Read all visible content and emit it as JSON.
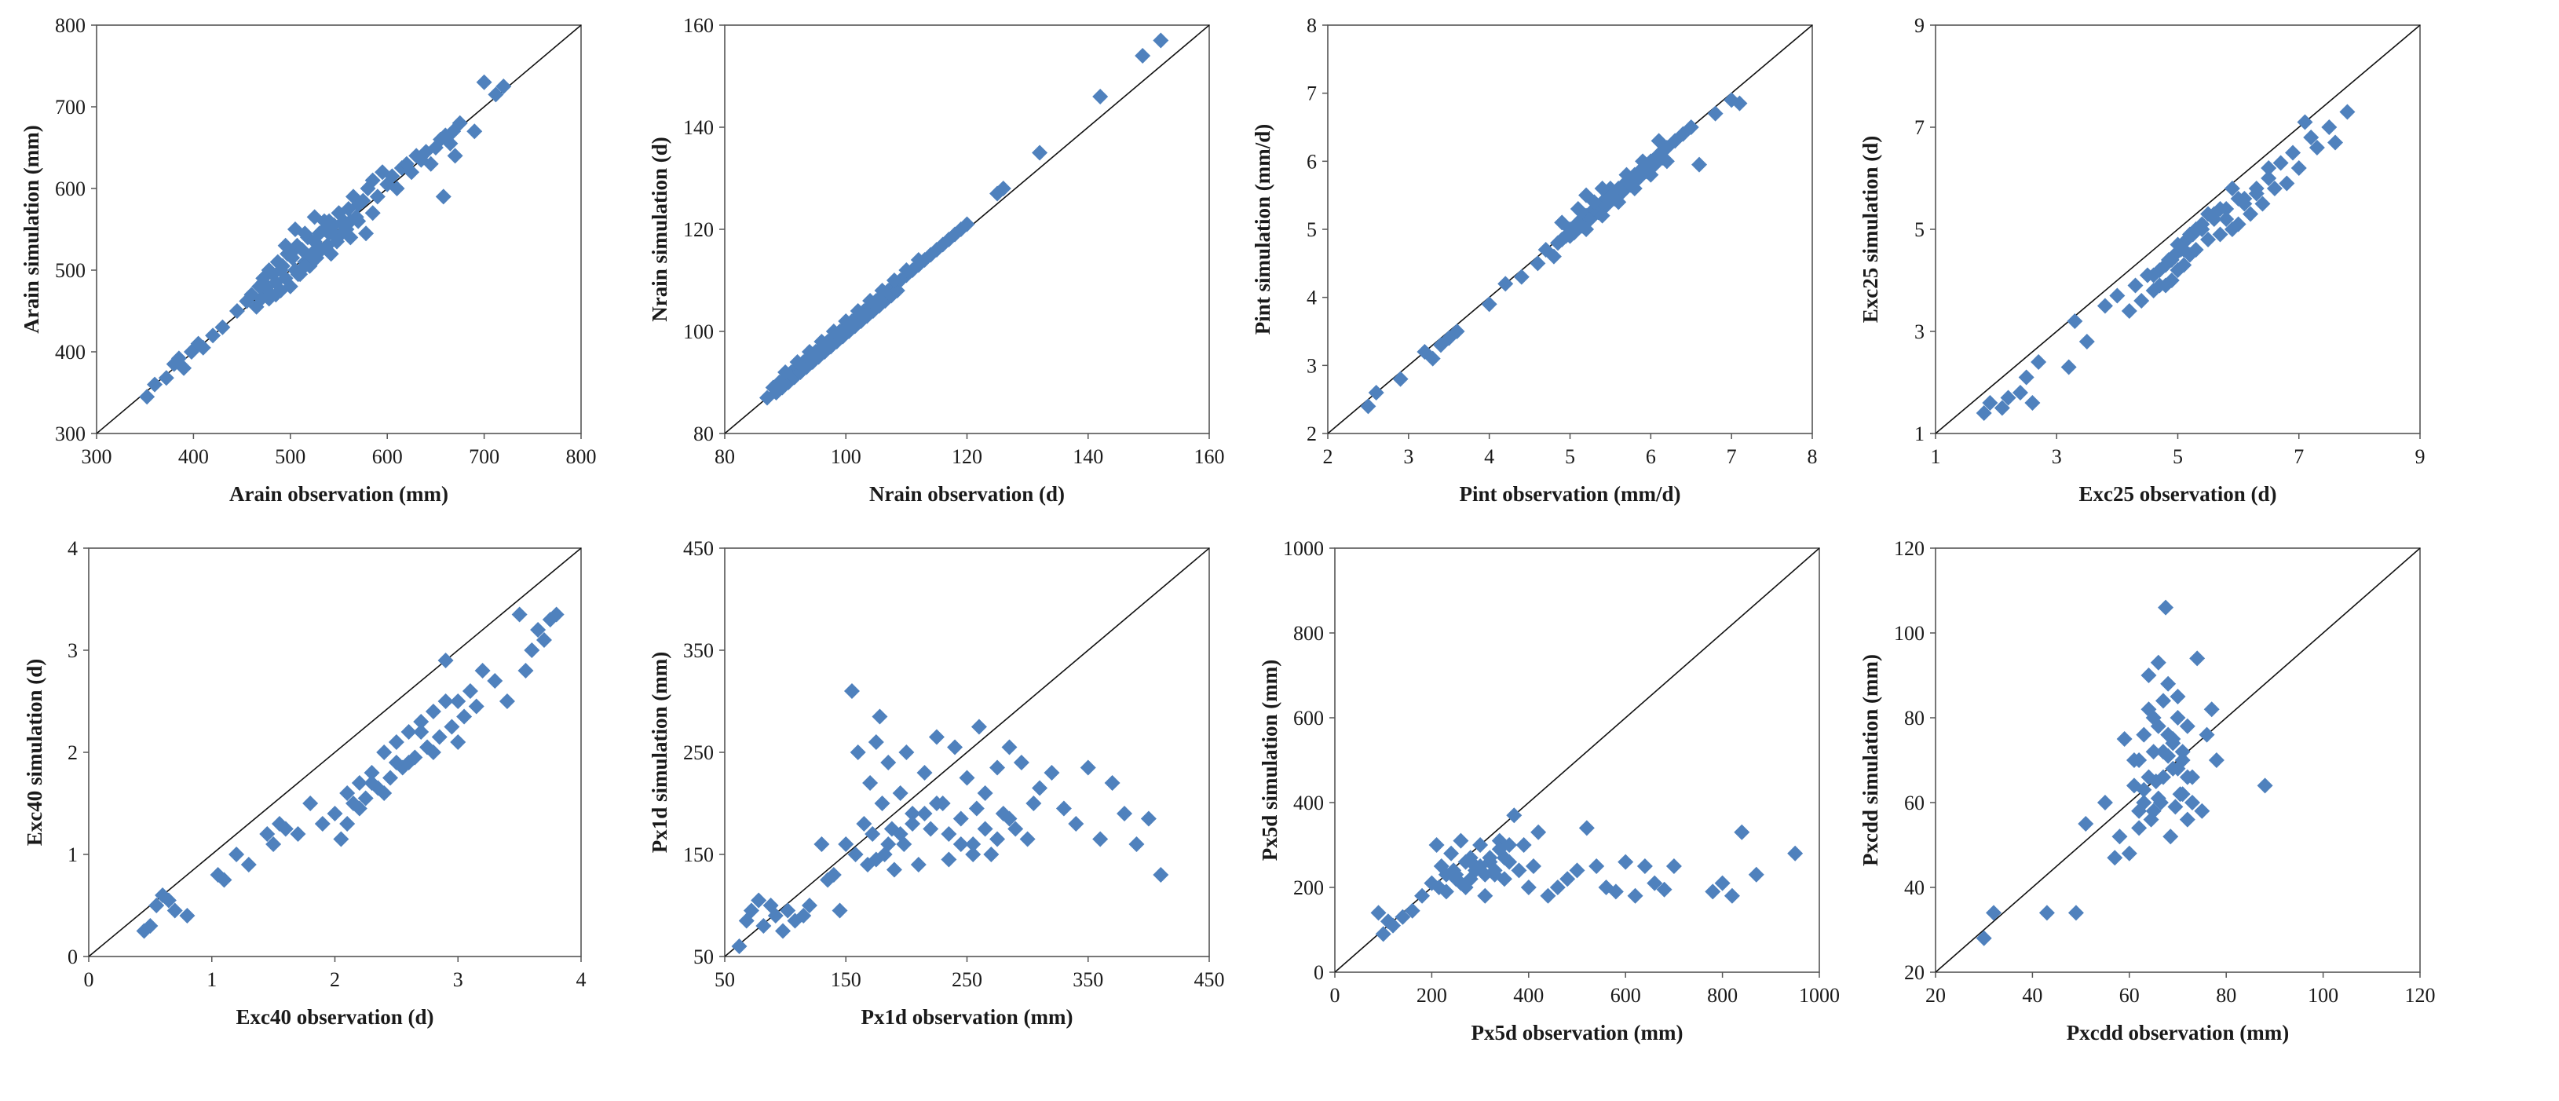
{
  "marker_color": "#4F81BD",
  "marker_shape": "diamond",
  "chart_data": [
    {
      "type": "scatter",
      "title": "",
      "xlabel": "Arain observation  (mm)",
      "ylabel": "Arain simulation (mm)",
      "xlim": [
        300,
        800
      ],
      "ylim": [
        300,
        800
      ],
      "xticks": [
        "300",
        "400",
        "500",
        "600",
        "700",
        "800"
      ],
      "yticks": [
        "300",
        "400",
        "500",
        "600",
        "700",
        "800"
      ],
      "reference_line": "1:1",
      "x": [
        352,
        360,
        372,
        380,
        385,
        390,
        398,
        405,
        410,
        420,
        430,
        445,
        455,
        460,
        465,
        468,
        470,
        472,
        475,
        478,
        480,
        482,
        485,
        487,
        490,
        492,
        495,
        497,
        500,
        502,
        505,
        507,
        510,
        512,
        515,
        518,
        520,
        522,
        525,
        527,
        530,
        532,
        535,
        538,
        540,
        542,
        545,
        548,
        550,
        553,
        555,
        558,
        560,
        562,
        565,
        568,
        570,
        575,
        580,
        585,
        590,
        595,
        600,
        605,
        610,
        615,
        620,
        625,
        630,
        635,
        640,
        645,
        650,
        655,
        658,
        660,
        665,
        668,
        670,
        675,
        690,
        700,
        712,
        720,
        472,
        478,
        485,
        490,
        500,
        508,
        515,
        525,
        532,
        540,
        548,
        555,
        562,
        570,
        578,
        585,
        495,
        505,
        515,
        525,
        535
      ],
      "y": [
        345,
        360,
        368,
        385,
        392,
        380,
        400,
        410,
        405,
        420,
        430,
        450,
        462,
        470,
        455,
        480,
        465,
        490,
        478,
        500,
        470,
        495,
        485,
        510,
        475,
        505,
        490,
        520,
        480,
        515,
        500,
        530,
        495,
        525,
        510,
        540,
        505,
        520,
        535,
        515,
        545,
        525,
        550,
        530,
        560,
        520,
        555,
        540,
        570,
        545,
        560,
        550,
        575,
        560,
        590,
        565,
        580,
        585,
        600,
        610,
        590,
        620,
        605,
        615,
        600,
        625,
        630,
        620,
        640,
        635,
        645,
        630,
        650,
        660,
        590,
        665,
        655,
        670,
        640,
        680,
        670,
        730,
        715,
        725,
        485,
        465,
        470,
        500,
        520,
        495,
        505,
        515,
        525,
        545,
        535,
        555,
        540,
        560,
        545,
        570,
        530,
        550,
        545,
        565,
        560
      ]
    },
    {
      "type": "scatter",
      "title": "",
      "xlabel": "Nrain observation  (d)",
      "ylabel": "Nrain simulation (d)",
      "xlim": [
        80,
        160
      ],
      "ylim": [
        80,
        160
      ],
      "xticks": [
        "80",
        "100",
        "120",
        "140",
        "160"
      ],
      "yticks": [
        "80",
        "100",
        "120",
        "140",
        "160"
      ],
      "reference_line": "1:1",
      "x": [
        87,
        88,
        88.5,
        89,
        89.5,
        90,
        90.5,
        91,
        91.5,
        92,
        92.5,
        93,
        93.5,
        94,
        94.5,
        95,
        95.5,
        96,
        96.5,
        97,
        97.5,
        98,
        98.5,
        99,
        99.5,
        100,
        100.5,
        101,
        101.5,
        102,
        102.5,
        103,
        103.5,
        104,
        104.5,
        105,
        105.5,
        106,
        106.5,
        107,
        107.5,
        108,
        108.5,
        109,
        110,
        111,
        112,
        113,
        114,
        115,
        116,
        117,
        118,
        119,
        120,
        125,
        126,
        132,
        142,
        149,
        152,
        90,
        92,
        94,
        96,
        98,
        100,
        102,
        104,
        106,
        108,
        110,
        112,
        95,
        97,
        99,
        101,
        103,
        105
      ],
      "y": [
        87,
        89,
        88,
        90,
        89,
        91,
        90,
        92,
        91,
        93,
        92,
        94,
        93,
        95,
        94,
        96,
        95,
        97,
        96,
        98,
        97,
        99,
        98,
        100,
        99,
        101,
        100,
        102,
        101,
        103,
        102,
        104,
        103,
        105,
        104,
        106,
        105,
        107,
        106,
        108,
        107,
        109,
        108,
        110,
        111,
        112,
        113,
        114,
        115,
        116,
        117,
        118,
        119,
        120,
        121,
        127,
        128,
        135,
        146,
        154,
        157,
        92,
        94,
        96,
        98,
        100,
        102,
        104,
        106,
        108,
        110,
        112,
        114,
        95,
        97,
        99,
        101,
        103,
        105
      ]
    },
    {
      "type": "scatter",
      "title": "",
      "xlabel": "Pint observation  (mm/d)",
      "ylabel": "Pint simulation  (mm/d)",
      "xlim": [
        2,
        8
      ],
      "ylim": [
        2,
        8
      ],
      "xticks": [
        "2",
        "3",
        "4",
        "5",
        "6",
        "7",
        "8"
      ],
      "yticks": [
        "2",
        "3",
        "4",
        "5",
        "6",
        "7",
        "8"
      ],
      "reference_line": "1:1",
      "x": [
        2.5,
        2.6,
        2.9,
        3.2,
        3.3,
        3.4,
        3.5,
        3.6,
        4.0,
        4.2,
        4.4,
        4.6,
        4.7,
        4.8,
        4.85,
        4.9,
        4.95,
        5.0,
        5.05,
        5.1,
        5.15,
        5.2,
        5.25,
        5.3,
        5.35,
        5.4,
        5.45,
        5.5,
        5.55,
        5.6,
        5.65,
        5.7,
        5.75,
        5.8,
        5.85,
        5.9,
        5.95,
        6.0,
        6.05,
        6.1,
        6.15,
        6.2,
        6.3,
        6.4,
        6.5,
        6.6,
        6.8,
        7.0,
        7.1,
        4.9,
        5.0,
        5.1,
        5.2,
        5.3,
        5.4,
        5.5,
        5.6,
        5.7,
        5.8,
        5.9,
        6.0,
        6.1,
        6.2,
        5.2,
        5.4
      ],
      "y": [
        2.4,
        2.6,
        2.8,
        3.2,
        3.1,
        3.3,
        3.4,
        3.5,
        3.9,
        4.2,
        4.3,
        4.5,
        4.7,
        4.6,
        4.8,
        4.85,
        4.9,
        5.0,
        4.95,
        5.1,
        5.05,
        5.2,
        5.15,
        5.3,
        5.25,
        5.4,
        5.35,
        5.5,
        5.45,
        5.6,
        5.55,
        5.7,
        5.65,
        5.8,
        5.75,
        5.9,
        5.85,
        6.0,
        5.95,
        6.1,
        6.05,
        6.2,
        6.3,
        6.4,
        6.5,
        5.95,
        6.7,
        6.9,
        6.85,
        5.1,
        4.9,
        5.3,
        5.0,
        5.4,
        5.2,
        5.6,
        5.4,
        5.8,
        5.6,
        6.0,
        5.8,
        6.3,
        6.0,
        5.5,
        5.6
      ]
    },
    {
      "type": "scatter",
      "title": "",
      "xlabel": "Exc25 observation  (d)",
      "ylabel": "Exc25 simulation  (d)",
      "xlim": [
        1,
        9
      ],
      "ylim": [
        1,
        9
      ],
      "xticks": [
        "1",
        "3",
        "5",
        "7",
        "9"
      ],
      "yticks": [
        "1",
        "3",
        "5",
        "7",
        "9"
      ],
      "reference_line": "1:1",
      "x": [
        1.8,
        1.9,
        2.1,
        2.2,
        2.4,
        2.5,
        2.6,
        2.7,
        3.2,
        3.3,
        3.5,
        3.8,
        4.0,
        4.2,
        4.3,
        4.4,
        4.5,
        4.6,
        4.7,
        4.8,
        4.85,
        4.9,
        4.95,
        5.0,
        5.05,
        5.1,
        5.15,
        5.2,
        5.25,
        5.3,
        5.4,
        5.5,
        5.6,
        5.7,
        5.8,
        5.9,
        6.0,
        6.1,
        6.2,
        6.3,
        6.4,
        6.5,
        6.6,
        6.7,
        6.8,
        6.9,
        7.0,
        7.1,
        7.2,
        7.3,
        7.5,
        7.6,
        7.8,
        4.6,
        4.8,
        5.0,
        5.2,
        5.4,
        5.6,
        5.8,
        6.0,
        4.7,
        4.9,
        5.1,
        5.3,
        5.5,
        5.7,
        5.9,
        6.1,
        6.3,
        6.5
      ],
      "y": [
        1.4,
        1.6,
        1.5,
        1.7,
        1.8,
        2.1,
        1.6,
        2.4,
        2.3,
        3.2,
        2.8,
        3.5,
        3.7,
        3.4,
        3.9,
        3.6,
        4.1,
        3.8,
        4.2,
        3.9,
        4.4,
        4.0,
        4.5,
        4.2,
        4.6,
        4.3,
        4.8,
        4.5,
        4.9,
        4.6,
        5.0,
        4.8,
        5.2,
        4.9,
        5.4,
        5.0,
        5.1,
        5.5,
        5.3,
        5.7,
        5.5,
        6.0,
        5.8,
        6.3,
        5.9,
        6.5,
        6.2,
        7.1,
        6.8,
        6.6,
        7.0,
        6.7,
        7.3,
        4.1,
        4.3,
        4.7,
        4.9,
        5.1,
        5.3,
        5.2,
        5.6,
        3.9,
        4.4,
        4.6,
        5.0,
        5.3,
        5.4,
        5.8,
        5.6,
        5.8,
        6.2
      ]
    },
    {
      "type": "scatter",
      "title": "",
      "xlabel": "Exc40 observation  (d)",
      "ylabel": "Exc40 simulation  (d)",
      "xlim": [
        0,
        4
      ],
      "ylim": [
        0,
        4
      ],
      "xticks": [
        "0",
        "1",
        "2",
        "3",
        "4"
      ],
      "yticks": [
        "0",
        "1",
        "2",
        "3",
        "4"
      ],
      "reference_line": "1:1",
      "x": [
        0.45,
        0.5,
        0.55,
        0.6,
        0.65,
        0.7,
        0.8,
        1.05,
        1.1,
        1.2,
        1.3,
        1.45,
        1.5,
        1.55,
        1.6,
        1.7,
        1.8,
        1.9,
        2.0,
        2.05,
        2.1,
        2.15,
        2.2,
        2.25,
        2.3,
        2.35,
        2.4,
        2.45,
        2.5,
        2.55,
        2.6,
        2.65,
        2.7,
        2.75,
        2.8,
        2.85,
        2.9,
        2.95,
        3.0,
        3.05,
        3.1,
        3.15,
        3.2,
        3.3,
        3.4,
        3.5,
        3.55,
        3.6,
        3.65,
        3.7,
        3.75,
        3.8,
        2.2,
        2.4,
        2.6,
        2.8,
        3.0,
        2.3,
        2.5,
        2.7,
        2.9,
        2.1
      ],
      "y": [
        0.25,
        0.3,
        0.5,
        0.6,
        0.55,
        0.45,
        0.4,
        0.8,
        0.75,
        1.0,
        0.9,
        1.2,
        1.1,
        1.3,
        1.25,
        1.2,
        1.5,
        1.3,
        1.4,
        1.15,
        1.6,
        1.5,
        1.7,
        1.55,
        1.8,
        1.65,
        2.0,
        1.75,
        2.1,
        1.85,
        2.2,
        1.95,
        2.3,
        2.05,
        2.4,
        2.15,
        2.9,
        2.25,
        2.5,
        2.35,
        2.6,
        2.45,
        2.8,
        2.7,
        2.5,
        3.35,
        2.8,
        3.0,
        3.2,
        3.1,
        3.3,
        3.35,
        1.45,
        1.6,
        1.9,
        2.0,
        2.1,
        1.7,
        1.9,
        2.2,
        2.5,
        1.3
      ]
    },
    {
      "type": "scatter",
      "title": "",
      "xlabel": "Px1d observation  (mm)",
      "ylabel": "Px1d simulation  (mm)",
      "xlim": [
        50,
        450
      ],
      "ylim": [
        50,
        450
      ],
      "xticks": [
        "50",
        "150",
        "250",
        "350",
        "450"
      ],
      "yticks": [
        "50",
        "150",
        "250",
        "350",
        "450"
      ],
      "reference_line": "1:1",
      "x": [
        62,
        68,
        72,
        78,
        82,
        88,
        92,
        98,
        102,
        108,
        115,
        120,
        130,
        135,
        140,
        145,
        150,
        155,
        158,
        160,
        165,
        168,
        170,
        172,
        175,
        178,
        180,
        182,
        185,
        188,
        190,
        195,
        198,
        200,
        205,
        210,
        215,
        220,
        225,
        230,
        235,
        240,
        245,
        250,
        255,
        258,
        260,
        265,
        270,
        275,
        280,
        285,
        290,
        295,
        300,
        305,
        310,
        320,
        330,
        340,
        350,
        360,
        370,
        380,
        390,
        400,
        410,
        175,
        185,
        195,
        205,
        215,
        225,
        235,
        245,
        255,
        265,
        275,
        285
      ],
      "y": [
        60,
        85,
        95,
        105,
        80,
        100,
        90,
        75,
        95,
        85,
        90,
        100,
        160,
        125,
        130,
        95,
        160,
        310,
        150,
        250,
        180,
        140,
        220,
        170,
        260,
        285,
        200,
        150,
        240,
        175,
        135,
        210,
        160,
        250,
        190,
        140,
        230,
        175,
        265,
        200,
        145,
        255,
        185,
        225,
        160,
        195,
        275,
        210,
        150,
        235,
        190,
        255,
        175,
        240,
        165,
        200,
        215,
        230,
        195,
        180,
        235,
        165,
        220,
        190,
        160,
        185,
        130,
        145,
        160,
        170,
        180,
        190,
        200,
        170,
        160,
        150,
        175,
        165,
        185
      ]
    },
    {
      "type": "scatter",
      "title": "",
      "xlabel": "Px5d observation  (mm)",
      "ylabel": "Px5d simulation  (mm)",
      "xlim": [
        0,
        1000
      ],
      "ylim": [
        0,
        1000
      ],
      "xticks": [
        "0",
        "200",
        "400",
        "600",
        "800",
        "1000"
      ],
      "yticks": [
        "0",
        "200",
        "400",
        "600",
        "800",
        "1000"
      ],
      "reference_line": "1:1",
      "x": [
        90,
        100,
        110,
        120,
        140,
        160,
        180,
        200,
        210,
        220,
        230,
        240,
        250,
        260,
        270,
        280,
        290,
        300,
        310,
        320,
        330,
        340,
        350,
        360,
        370,
        380,
        390,
        400,
        410,
        420,
        440,
        460,
        480,
        500,
        520,
        540,
        560,
        580,
        600,
        620,
        640,
        660,
        680,
        700,
        780,
        800,
        820,
        840,
        870,
        950,
        250,
        270,
        290,
        310,
        330,
        350,
        260,
        280,
        300,
        320,
        340,
        360,
        230,
        215,
        245
      ],
      "y": [
        140,
        90,
        120,
        110,
        130,
        145,
        180,
        210,
        300,
        250,
        190,
        280,
        220,
        310,
        200,
        270,
        240,
        300,
        180,
        260,
        230,
        310,
        220,
        260,
        370,
        240,
        300,
        200,
        250,
        330,
        180,
        200,
        220,
        240,
        340,
        250,
        200,
        190,
        260,
        180,
        250,
        210,
        195,
        250,
        190,
        210,
        180,
        330,
        230,
        280,
        230,
        260,
        250,
        230,
        240,
        270,
        210,
        220,
        250,
        270,
        290,
        300,
        230,
        200,
        240
      ]
    },
    {
      "type": "scatter",
      "title": "",
      "xlabel": "Pxcdd observation  (mm)",
      "ylabel": "Pxcdd simulation  (mm)",
      "xlim": [
        20,
        120
      ],
      "ylim": [
        20,
        120
      ],
      "xticks": [
        "20",
        "40",
        "60",
        "80",
        "100",
        "120"
      ],
      "yticks": [
        "20",
        "40",
        "60",
        "80",
        "100",
        "120"
      ],
      "reference_line": "1:1",
      "x": [
        30,
        32,
        43,
        49,
        51,
        55,
        57,
        58,
        59,
        60,
        61,
        62,
        63,
        64,
        64.5,
        65,
        65.5,
        66,
        66.5,
        67,
        67.5,
        68,
        68.5,
        69,
        69.5,
        70,
        70.5,
        71,
        72,
        73,
        74,
        75,
        76,
        77,
        78,
        88,
        62,
        63,
        64,
        65,
        66,
        67,
        68,
        69,
        70,
        71,
        72,
        73,
        61,
        62,
        63,
        64,
        65,
        66,
        67,
        68,
        69,
        70,
        71,
        72
      ],
      "y": [
        28,
        34,
        34,
        34,
        55,
        60,
        47,
        52,
        75,
        48,
        70,
        58,
        63,
        90,
        56,
        80,
        65,
        93,
        60,
        72,
        106,
        76,
        52,
        68,
        59,
        85,
        62,
        70,
        78,
        66,
        94,
        58,
        76,
        82,
        70,
        64,
        54,
        60,
        66,
        72,
        78,
        84,
        88,
        74,
        68,
        62,
        56,
        60,
        64,
        70,
        76,
        82,
        58,
        61,
        66,
        71,
        75,
        80,
        72,
        66
      ]
    }
  ]
}
